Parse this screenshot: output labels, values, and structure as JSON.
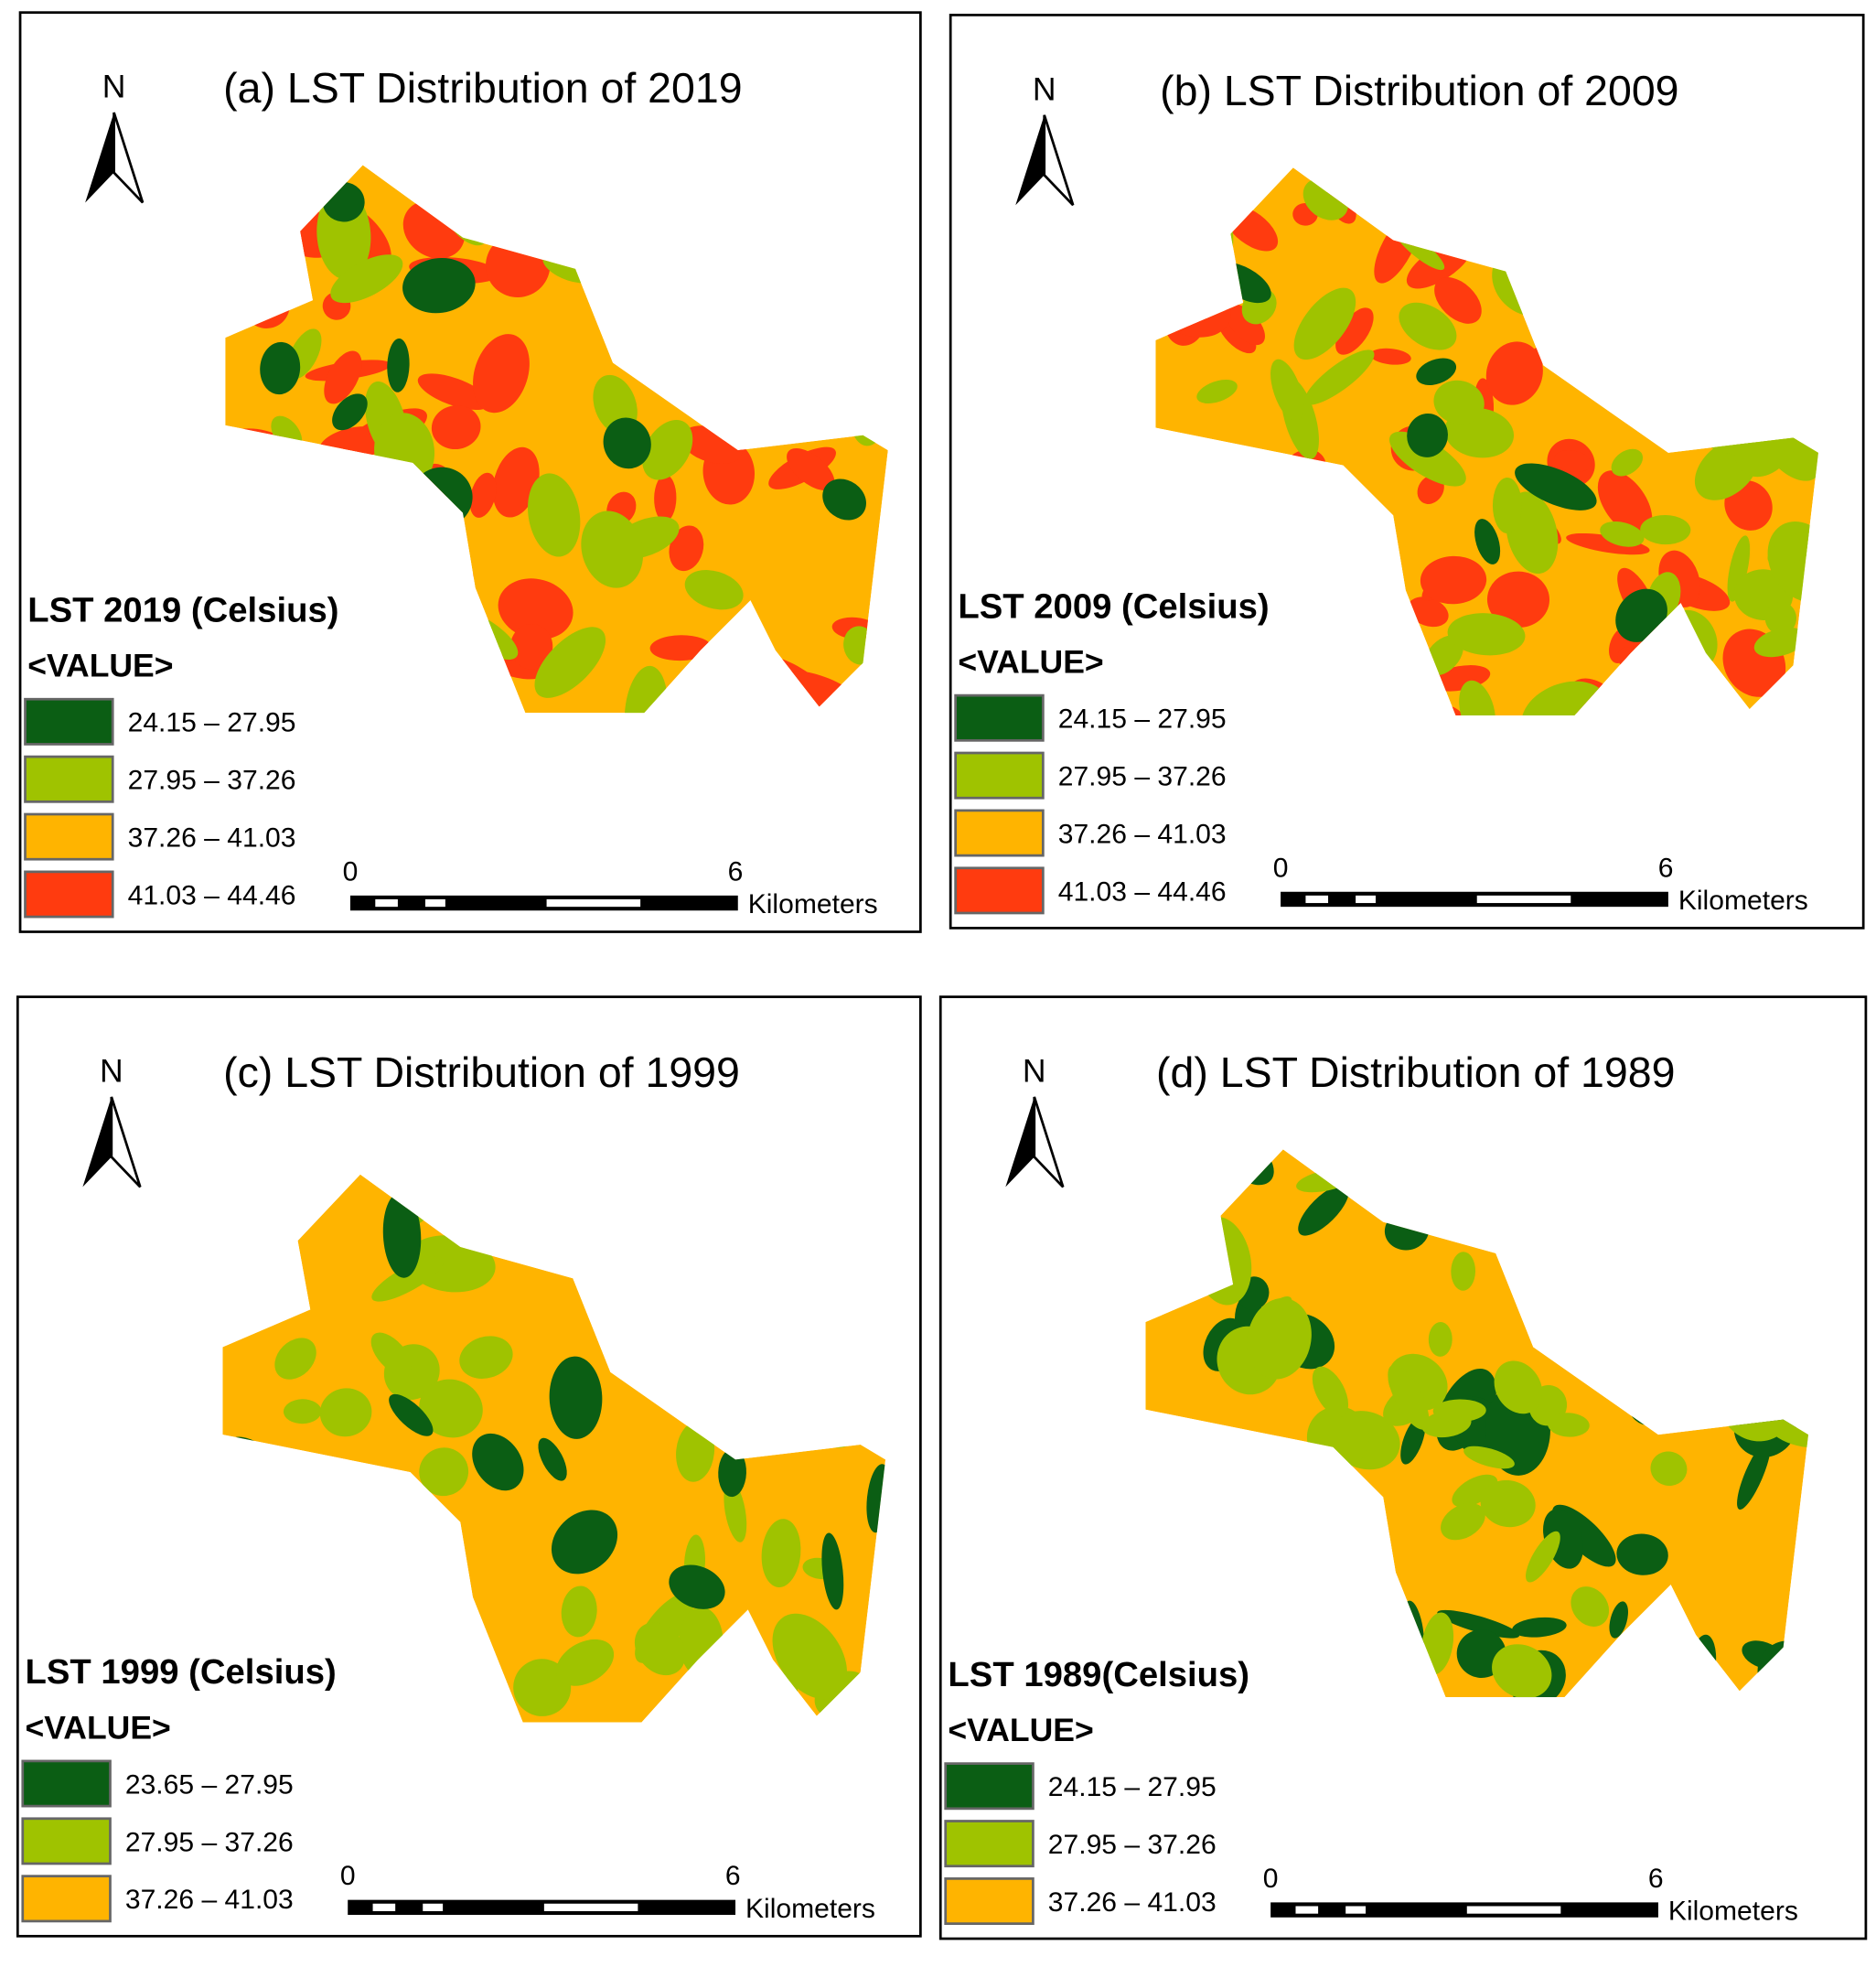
{
  "panels": [
    {
      "title": "(a) LST Distribution of 2019",
      "north": "N",
      "legend": {
        "title": "LST 2019 (Celsius)",
        "subtitle": "<VALUE>",
        "items": [
          {
            "label": "24.15 – 27.95",
            "color": "#0b5e14"
          },
          {
            "label": "27.95 – 37.26",
            "color": "#9fc300"
          },
          {
            "label": "37.26 – 41.03",
            "color": "#ffb400"
          },
          {
            "label": "41.03 – 44.46",
            "color": "#ff3b0f"
          }
        ]
      },
      "scale": {
        "start": "0",
        "end": "6",
        "unit": "Kilometers"
      }
    },
    {
      "title": "(b) LST Distribution of  2009",
      "north": "N",
      "legend": {
        "title": "LST 2009 (Celsius)",
        "subtitle": "<VALUE>",
        "items": [
          {
            "label": "24.15 – 27.95",
            "color": "#0b5e14"
          },
          {
            "label": "27.95 – 37.26",
            "color": "#9fc300"
          },
          {
            "label": "37.26 – 41.03",
            "color": "#ffb400"
          },
          {
            "label": "41.03 – 44.46",
            "color": "#ff3b0f"
          }
        ]
      },
      "scale": {
        "start": "0",
        "end": "6",
        "unit": "Kilometers"
      }
    },
    {
      "title": "(c) LST Distribution of 1999",
      "north": "N",
      "legend": {
        "title": "LST 1999 (Celsius)",
        "subtitle": "<VALUE>",
        "items": [
          {
            "label": "23.65 – 27.95",
            "color": "#0b5e14"
          },
          {
            "label": "27.95 – 37.26",
            "color": "#9fc300"
          },
          {
            "label": "37.26 – 41.03",
            "color": "#ffb400"
          }
        ]
      },
      "scale": {
        "start": "0",
        "end": "6",
        "unit": "Kilometers"
      }
    },
    {
      "title": "(d) LST Distribution of 1989",
      "north": "N",
      "legend": {
        "title": "LST 1989(Celsius)",
        "subtitle": "<VALUE>",
        "items": [
          {
            "label": "24.15 – 27.95",
            "color": "#0b5e14"
          },
          {
            "label": "27.95 – 37.26",
            "color": "#9fc300"
          },
          {
            "label": "37.26 – 41.03",
            "color": "#ffb400"
          }
        ]
      },
      "scale": {
        "start": "0",
        "end": "6",
        "unit": "Kilometers"
      }
    }
  ]
}
